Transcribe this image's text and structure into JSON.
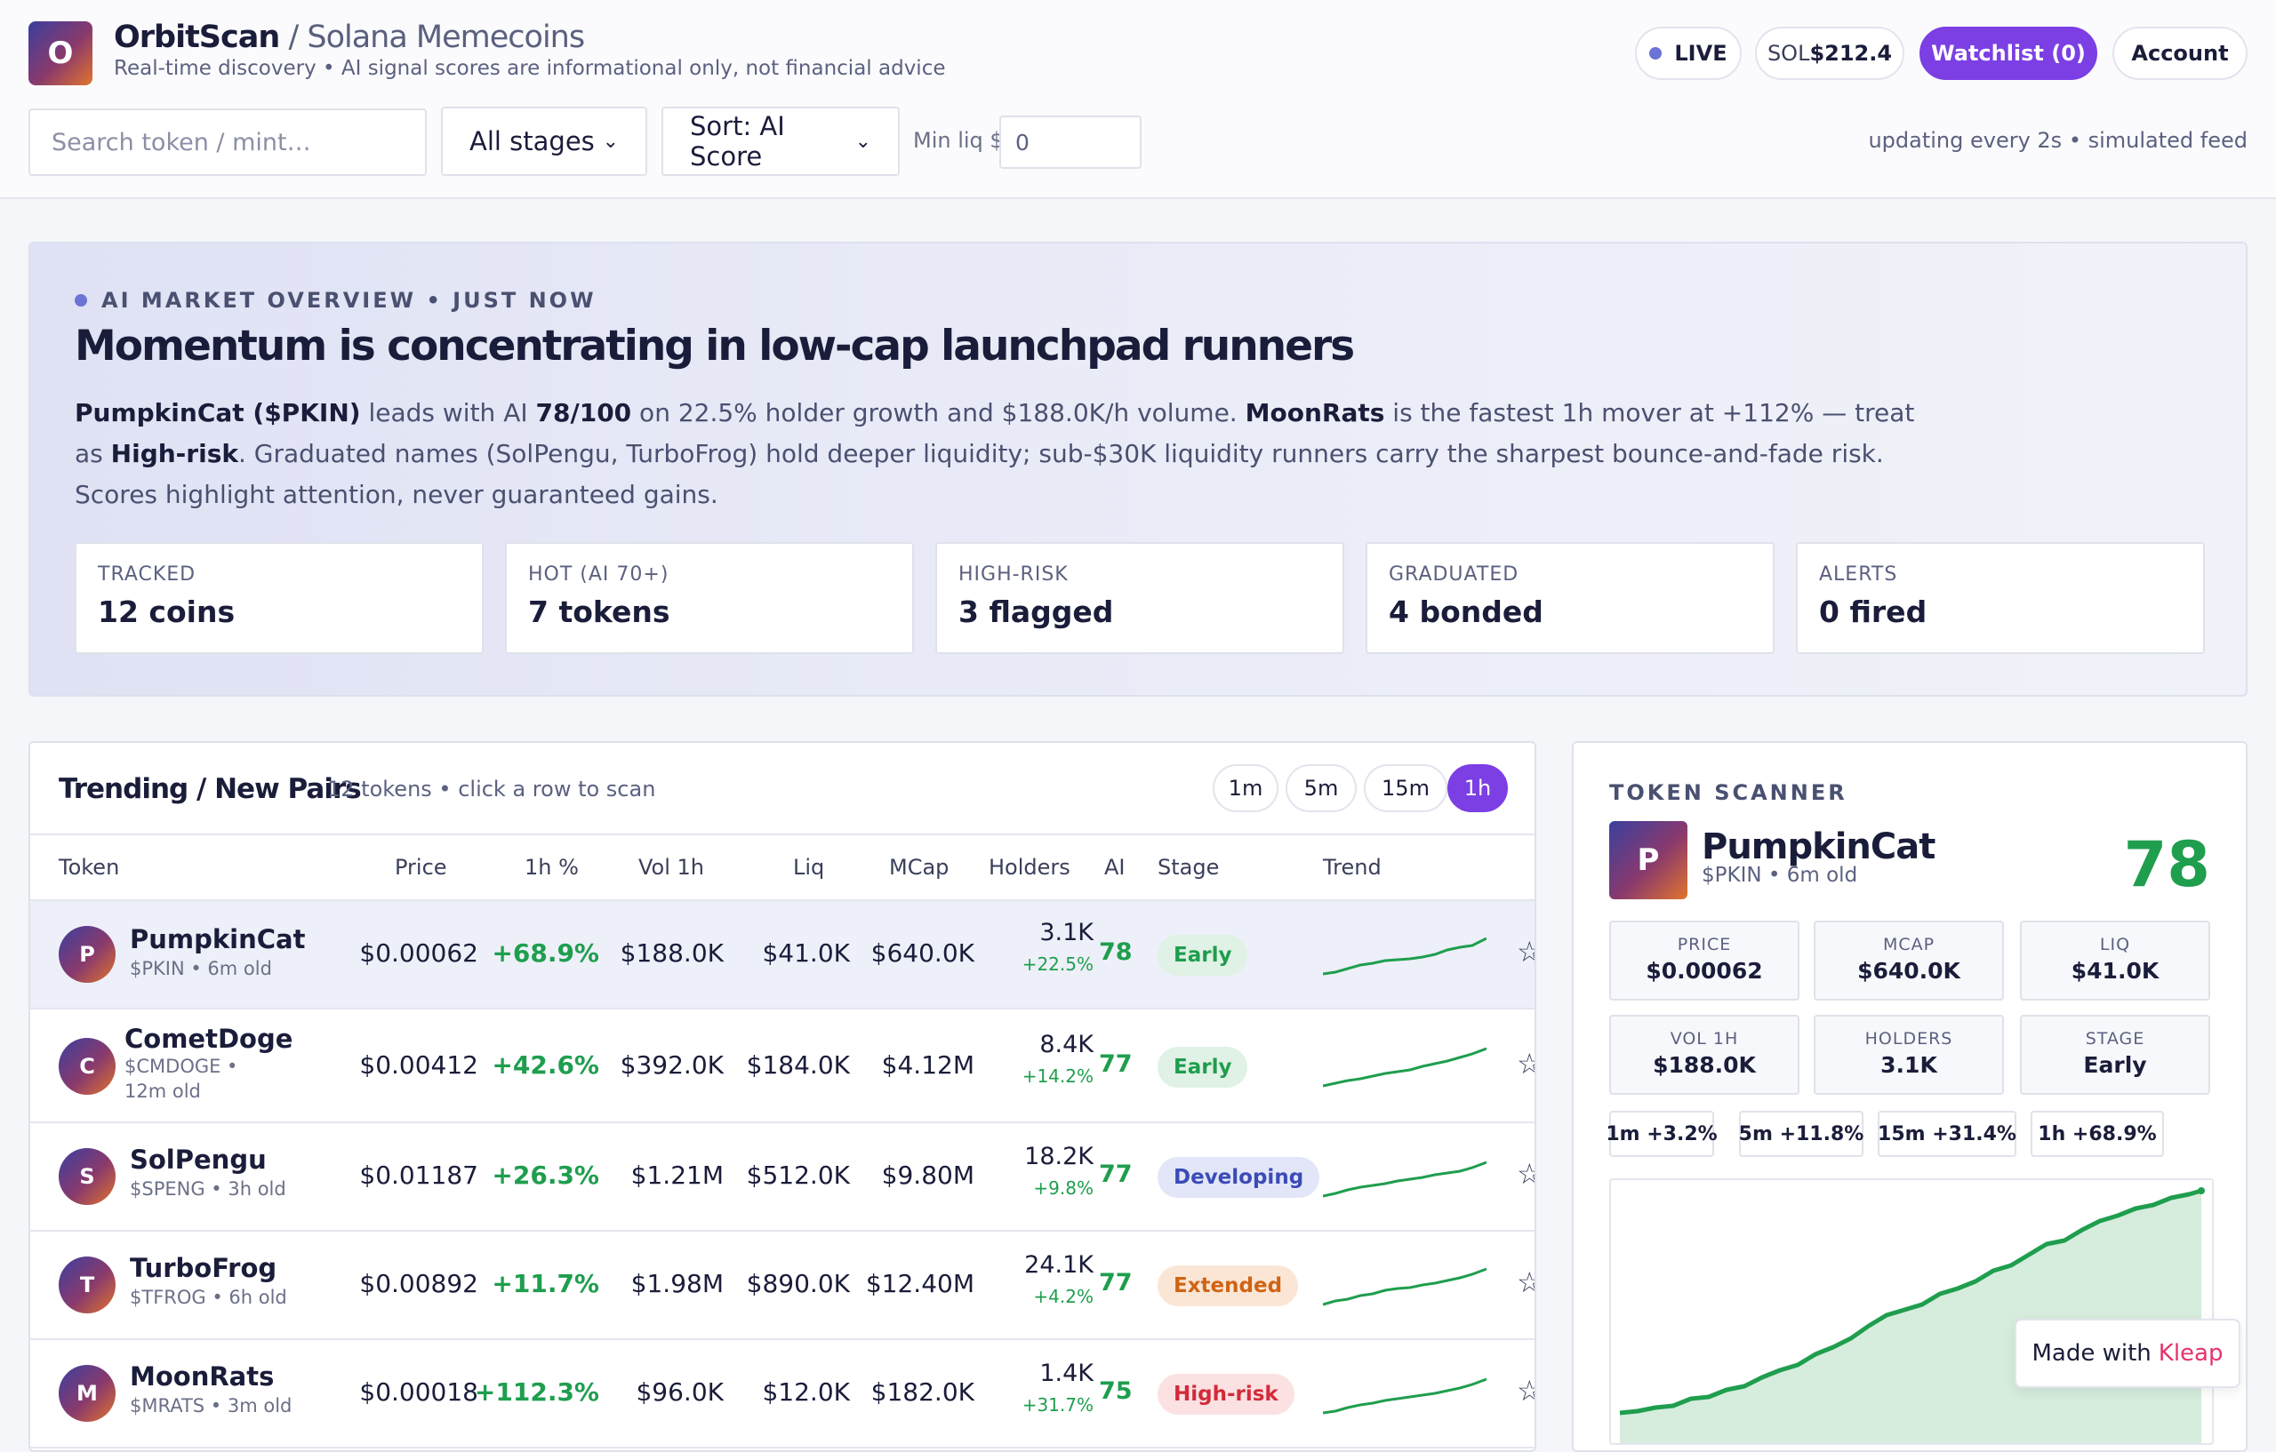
{
  "header": {
    "logo_letter": "O",
    "brand": "OrbitScan",
    "brand_sep": "/",
    "section": "Solana Memecoins",
    "subtitle": "Real-time discovery • AI signal scores are informational only, not financial advice",
    "live_label": "LIVE",
    "sol_label": "SOL",
    "sol_price": "$212.4",
    "watchlist_label": "Watchlist (0)",
    "account_label": "Account"
  },
  "filters": {
    "search_placeholder": "Search token / mint…",
    "stage_select": "All stages",
    "sort_select": "Sort: AI Score",
    "min_liq_label": "Min liq $",
    "min_liq_value": "0",
    "status": "updating every 2s • simulated feed"
  },
  "overview": {
    "tag": "AI MARKET OVERVIEW • JUST NOW",
    "title": "Momentum is concentrating in low-cap launchpad runners",
    "body": {
      "t1": "PumpkinCat ($PKIN)",
      "t2": " leads with AI ",
      "t3": "78/100",
      "t4": " on 22.5% holder growth and $188.0K/h volume. ",
      "t5": "MoonRats",
      "t6": " is the fastest 1h mover at +112% — treat as ",
      "t7": "High-risk",
      "t8": ". Graduated names (SolPengu, TurboFrog) hold deeper liquidity; sub-$30K liquidity runners carry the sharpest bounce-and-fade risk. Scores highlight attention, never guaranteed gains."
    },
    "stats": [
      {
        "label": "TRACKED",
        "value": "12 coins"
      },
      {
        "label": "HOT (AI 70+)",
        "value": "7 tokens"
      },
      {
        "label": "HIGH-RISK",
        "value": "3 flagged"
      },
      {
        "label": "GRADUATED",
        "value": "4 bonded"
      },
      {
        "label": "ALERTS",
        "value": "0 fired"
      }
    ]
  },
  "trending": {
    "title": "Trending / New Pairs",
    "subtitle": "12 tokens • click a row to scan",
    "timeframes": [
      "1m",
      "5m",
      "15m",
      "1h"
    ],
    "active_timeframe": "1h",
    "columns": [
      "Token",
      "Price",
      "1h %",
      "Vol 1h",
      "Liq",
      "MCap",
      "Holders",
      "AI",
      "Stage",
      "Trend"
    ],
    "rows": [
      {
        "letter": "P",
        "name": "PumpkinCat",
        "meta": "$PKIN • 6m old",
        "price": "$0.00062",
        "change": "+68.9%",
        "vol": "$188.0K",
        "liq": "$41.0K",
        "mcap": "$640.0K",
        "holders": "3.1K",
        "holders_delta": "+22.5%",
        "ai": "78",
        "stage": "Early",
        "star": "☆"
      },
      {
        "letter": "C",
        "name": "CometDoge",
        "meta": "$CMDOGE • 12m old",
        "price": "$0.00412",
        "change": "+42.6%",
        "vol": "$392.0K",
        "liq": "$184.0K",
        "mcap": "$4.12M",
        "holders": "8.4K",
        "holders_delta": "+14.2%",
        "ai": "77",
        "stage": "Early",
        "star": "☆"
      },
      {
        "letter": "S",
        "name": "SolPengu",
        "meta": "$SPENG • 3h old",
        "price": "$0.01187",
        "change": "+26.3%",
        "vol": "$1.21M",
        "liq": "$512.0K",
        "mcap": "$9.80M",
        "holders": "18.2K",
        "holders_delta": "+9.8%",
        "ai": "77",
        "stage": "Developing",
        "star": "☆"
      },
      {
        "letter": "T",
        "name": "TurboFrog",
        "meta": "$TFROG • 6h old",
        "price": "$0.00892",
        "change": "+11.7%",
        "vol": "$1.98M",
        "liq": "$890.0K",
        "mcap": "$12.40M",
        "holders": "24.1K",
        "holders_delta": "+4.2%",
        "ai": "77",
        "stage": "Extended",
        "star": "☆"
      },
      {
        "letter": "M",
        "name": "MoonRats",
        "meta": "$MRATS • 3m old",
        "price": "$0.00018",
        "change": "+112.3%",
        "vol": "$96.0K",
        "liq": "$12.0K",
        "mcap": "$182.0K",
        "holders": "1.4K",
        "holders_delta": "+31.7%",
        "ai": "75",
        "stage": "High-risk",
        "star": "☆"
      }
    ]
  },
  "scanner": {
    "tag": "TOKEN SCANNER",
    "letter": "P",
    "name": "PumpkinCat",
    "meta": "$PKIN • 6m old",
    "score": "78",
    "metrics": [
      {
        "label": "PRICE",
        "value": "$0.00062"
      },
      {
        "label": "MCAP",
        "value": "$640.0K"
      },
      {
        "label": "LIQ",
        "value": "$41.0K"
      },
      {
        "label": "VOL 1H",
        "value": "$188.0K"
      },
      {
        "label": "HOLDERS",
        "value": "3.1K"
      },
      {
        "label": "STAGE",
        "value": "Early"
      }
    ],
    "changes": [
      "1m +3.2%",
      "5m +11.8%",
      "15m +31.4%",
      "1h +68.9%"
    ]
  },
  "colors": {
    "accent": "#7b3fe4",
    "positive": "#1f9e4e",
    "brand_gradient": [
      "#3b3f9f",
      "#8a3a6c",
      "#e2742c"
    ]
  },
  "footer_badge": {
    "prefix": "Made with",
    "brand": "Kleap"
  }
}
